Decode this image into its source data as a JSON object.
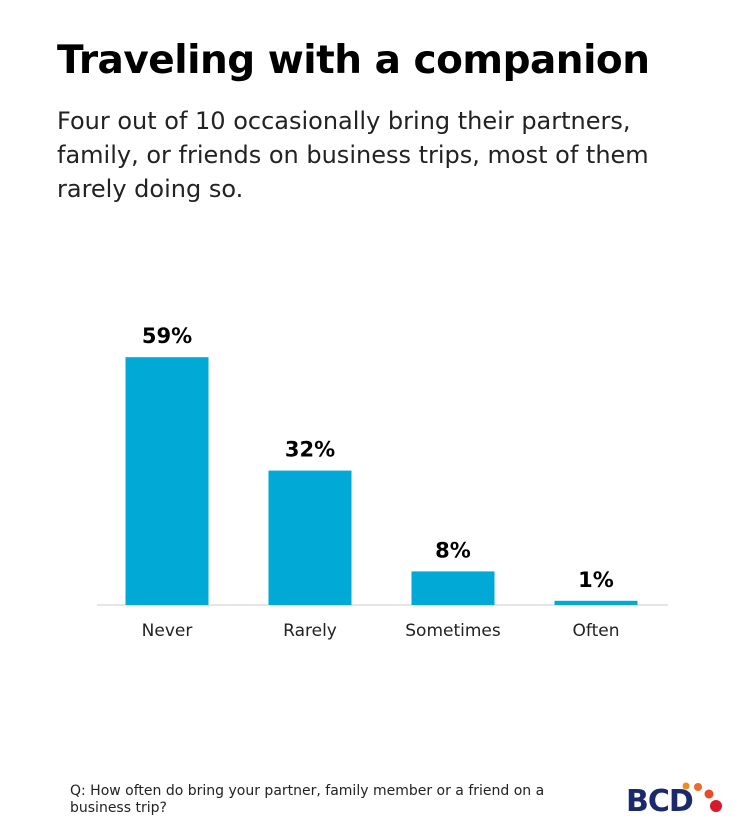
{
  "chart_data": {
    "type": "bar",
    "title": "Traveling with a companion",
    "subtitle": "Four out of 10 occasionally bring their partners, family, or friends on business trips, most of them rarely doing so.",
    "categories": [
      "Never",
      "Rarely",
      "Sometimes",
      "Often"
    ],
    "values": [
      59,
      32,
      8,
      1
    ],
    "value_labels": [
      "59%",
      "32%",
      "8%",
      "1%"
    ],
    "color": "#00a9d6",
    "footnote": "Q: How often do bring your partner, family member or a friend on a business trip?",
    "logo": "BCD"
  }
}
